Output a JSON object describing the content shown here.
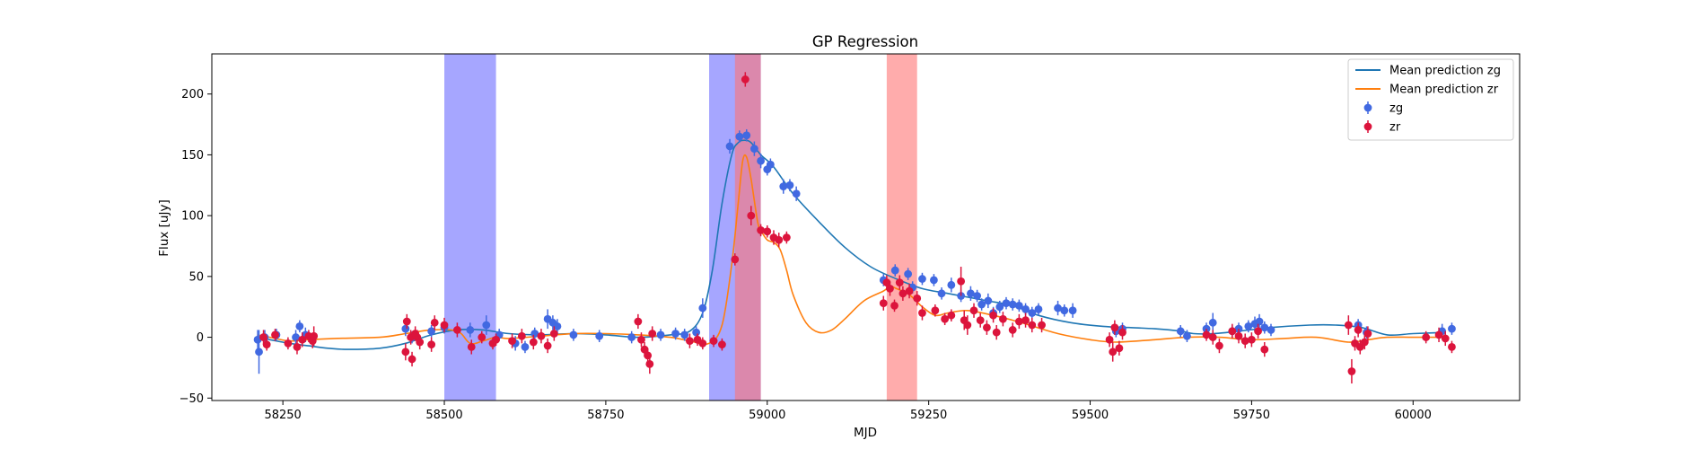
{
  "chart_data": {
    "type": "scatter",
    "title": "GP Regression",
    "xlabel": "MJD",
    "ylabel": "Flux [uJy]",
    "xlim": [
      58140,
      60165
    ],
    "ylim": [
      -52,
      233
    ],
    "x_ticks": [
      58250,
      58500,
      58750,
      59000,
      59250,
      59500,
      59750,
      60000
    ],
    "y_ticks": [
      -50,
      0,
      50,
      100,
      150,
      200
    ],
    "grid": false,
    "legend_position": "top-right",
    "colors": {
      "zg_line": "#1f77b4",
      "zr_line": "#ff7f0e",
      "zg_points": "#4169e1",
      "zr_points": "#dc143c",
      "band_blue": "#6a6aff",
      "band_red": "#ff7575"
    },
    "legend": [
      {
        "label": "Mean prediction zg",
        "kind": "line",
        "color": "#1f77b4"
      },
      {
        "label": "Mean prediction zr",
        "kind": "line",
        "color": "#ff7f0e"
      },
      {
        "label": "zg",
        "kind": "point",
        "color": "#4169e1"
      },
      {
        "label": "zr",
        "kind": "point",
        "color": "#dc143c"
      }
    ],
    "shaded_regions": [
      {
        "x0": 58500,
        "x1": 58580,
        "color": "blue"
      },
      {
        "x0": 58910,
        "x1": 58990,
        "color": "blue"
      },
      {
        "x0": 58950,
        "x1": 58990,
        "color": "red"
      },
      {
        "x0": 59185,
        "x1": 59232,
        "color": "red"
      }
    ],
    "series": [
      {
        "name": "Mean prediction zg",
        "kind": "line",
        "x": [
          58210,
          58230,
          58260,
          58290,
          58320,
          58350,
          58400,
          58440,
          58480,
          58520,
          58560,
          58600,
          58650,
          58700,
          58750,
          58800,
          58850,
          58880,
          58900,
          58915,
          58930,
          58945,
          58955,
          58965,
          58975,
          58990,
          59010,
          59040,
          59080,
          59120,
          59160,
          59200,
          59240,
          59280,
          59300,
          59340,
          59380,
          59420,
          59470,
          59520,
          59560,
          59600,
          59640,
          59660,
          59690,
          59730,
          59780,
          59840,
          59880,
          59920,
          59960,
          60000,
          60050
        ],
        "y": [
          0,
          -2,
          -5,
          -7,
          -9,
          -10,
          -9,
          -5,
          2,
          6,
          6,
          3,
          2,
          3,
          2,
          0,
          2,
          5,
          20,
          55,
          110,
          150,
          160,
          162,
          160,
          150,
          140,
          118,
          95,
          74,
          58,
          48,
          40,
          36,
          34,
          30,
          26,
          18,
          12,
          9,
          8,
          7,
          5,
          3,
          3,
          5,
          8,
          10,
          10,
          8,
          2,
          3,
          4
        ]
      },
      {
        "name": "Mean prediction zr",
        "kind": "line",
        "x": [
          58210,
          58230,
          58260,
          58290,
          58330,
          58400,
          58440,
          58480,
          58520,
          58540,
          58560,
          58580,
          58600,
          58650,
          58700,
          58750,
          58800,
          58850,
          58880,
          58910,
          58930,
          58945,
          58955,
          58962,
          58968,
          58975,
          58985,
          58990,
          59000,
          59010,
          59020,
          59030,
          59040,
          59060,
          59080,
          59100,
          59120,
          59150,
          59180,
          59190,
          59200,
          59220,
          59240,
          59260,
          59280,
          59310,
          59350,
          59380,
          59400,
          59450,
          59500,
          59540,
          59600,
          59650,
          59700,
          59750,
          59800,
          59850,
          59900,
          59930,
          59960,
          60000,
          60050
        ],
        "y": [
          2,
          0,
          -3,
          -2,
          -1,
          0,
          3,
          6,
          5,
          -5,
          -3,
          0,
          -1,
          1,
          3,
          3,
          2,
          0,
          -3,
          -5,
          10,
          60,
          110,
          145,
          148,
          130,
          95,
          88,
          80,
          78,
          72,
          55,
          35,
          12,
          4,
          6,
          15,
          30,
          38,
          42,
          40,
          35,
          25,
          18,
          20,
          22,
          18,
          14,
          11,
          3,
          -2,
          -4,
          -2,
          0,
          0,
          -2,
          -1,
          0,
          -4,
          -2,
          0,
          0,
          0
        ]
      },
      {
        "name": "zg",
        "kind": "points",
        "points": [
          [
            58211,
            -2,
            8
          ],
          [
            58213,
            -12,
            18
          ],
          [
            58222,
            0,
            6
          ],
          [
            58240,
            2,
            5
          ],
          [
            58270,
            0,
            6
          ],
          [
            58276,
            9,
            5
          ],
          [
            58285,
            2,
            6
          ],
          [
            58440,
            7,
            6
          ],
          [
            58450,
            0,
            5
          ],
          [
            58480,
            5,
            5
          ],
          [
            58500,
            8,
            5
          ],
          [
            58540,
            6,
            6
          ],
          [
            58565,
            10,
            8
          ],
          [
            58585,
            2,
            5
          ],
          [
            58610,
            -5,
            6
          ],
          [
            58625,
            -8,
            5
          ],
          [
            58640,
            3,
            5
          ],
          [
            58660,
            15,
            8
          ],
          [
            58668,
            12,
            6
          ],
          [
            58675,
            9,
            6
          ],
          [
            58700,
            2,
            5
          ],
          [
            58740,
            1,
            5
          ],
          [
            58790,
            0,
            5
          ],
          [
            58835,
            2,
            5
          ],
          [
            58858,
            3,
            5
          ],
          [
            58872,
            2,
            5
          ],
          [
            58890,
            4,
            5
          ],
          [
            58900,
            24,
            8
          ],
          [
            58942,
            157,
            6
          ],
          [
            58957,
            165,
            5
          ],
          [
            58968,
            166,
            5
          ],
          [
            58980,
            155,
            6
          ],
          [
            58990,
            145,
            6
          ],
          [
            59000,
            138,
            5
          ],
          [
            59005,
            142,
            5
          ],
          [
            59025,
            124,
            6
          ],
          [
            59035,
            125,
            5
          ],
          [
            59045,
            118,
            6
          ],
          [
            59180,
            47,
            5
          ],
          [
            59198,
            55,
            5
          ],
          [
            59218,
            52,
            5
          ],
          [
            59225,
            41,
            5
          ],
          [
            59240,
            48,
            5
          ],
          [
            59258,
            47,
            5
          ],
          [
            59270,
            36,
            5
          ],
          [
            59285,
            43,
            6
          ],
          [
            59300,
            34,
            5
          ],
          [
            59315,
            36,
            6
          ],
          [
            59325,
            34,
            5
          ],
          [
            59332,
            27,
            5
          ],
          [
            59342,
            30,
            6
          ],
          [
            59350,
            20,
            5
          ],
          [
            59360,
            25,
            5
          ],
          [
            59370,
            28,
            5
          ],
          [
            59380,
            27,
            5
          ],
          [
            59390,
            26,
            5
          ],
          [
            59400,
            23,
            5
          ],
          [
            59410,
            20,
            5
          ],
          [
            59420,
            23,
            5
          ],
          [
            59450,
            24,
            6
          ],
          [
            59460,
            22,
            5
          ],
          [
            59473,
            22,
            6
          ],
          [
            59540,
            5,
            5
          ],
          [
            59550,
            7,
            5
          ],
          [
            59640,
            5,
            5
          ],
          [
            59650,
            1,
            5
          ],
          [
            59680,
            7,
            5
          ],
          [
            59690,
            12,
            8
          ],
          [
            59720,
            5,
            5
          ],
          [
            59730,
            7,
            5
          ],
          [
            59745,
            9,
            5
          ],
          [
            59755,
            11,
            6
          ],
          [
            59762,
            13,
            6
          ],
          [
            59770,
            8,
            5
          ],
          [
            59780,
            6,
            5
          ],
          [
            59915,
            10,
            5
          ],
          [
            59928,
            4,
            5
          ],
          [
            60045,
            5,
            6
          ],
          [
            60060,
            7,
            5
          ]
        ]
      },
      {
        "name": "zr",
        "kind": "points",
        "points": [
          [
            58220,
            0,
            6
          ],
          [
            58225,
            -6,
            5
          ],
          [
            58238,
            2,
            5
          ],
          [
            58258,
            -5,
            5
          ],
          [
            58272,
            -8,
            6
          ],
          [
            58280,
            -2,
            6
          ],
          [
            58290,
            1,
            5
          ],
          [
            58296,
            -3,
            6
          ],
          [
            58298,
            1,
            8
          ],
          [
            58440,
            -12,
            7
          ],
          [
            58442,
            13,
            6
          ],
          [
            58448,
            0,
            6
          ],
          [
            58450,
            -18,
            6
          ],
          [
            58455,
            3,
            6
          ],
          [
            58458,
            0,
            6
          ],
          [
            58462,
            -4,
            6
          ],
          [
            58480,
            -6,
            6
          ],
          [
            58485,
            12,
            6
          ],
          [
            58500,
            10,
            6
          ],
          [
            58520,
            6,
            6
          ],
          [
            58542,
            -8,
            6
          ],
          [
            58558,
            0,
            5
          ],
          [
            58575,
            -5,
            5
          ],
          [
            58580,
            -2,
            5
          ],
          [
            58605,
            -3,
            6
          ],
          [
            58620,
            1,
            6
          ],
          [
            58638,
            -4,
            6
          ],
          [
            58650,
            1,
            6
          ],
          [
            58660,
            -7,
            6
          ],
          [
            58670,
            3,
            6
          ],
          [
            58800,
            13,
            6
          ],
          [
            58805,
            -2,
            6
          ],
          [
            58810,
            -10,
            6
          ],
          [
            58815,
            -15,
            6
          ],
          [
            58818,
            -22,
            8
          ],
          [
            58822,
            3,
            6
          ],
          [
            58880,
            -3,
            6
          ],
          [
            58892,
            -2,
            5
          ],
          [
            58900,
            -5,
            5
          ],
          [
            58917,
            -3,
            5
          ],
          [
            58930,
            -6,
            5
          ],
          [
            58950,
            64,
            5
          ],
          [
            58966,
            212,
            6
          ],
          [
            58975,
            100,
            8
          ],
          [
            58990,
            88,
            5
          ],
          [
            59000,
            87,
            5
          ],
          [
            59010,
            82,
            6
          ],
          [
            59018,
            80,
            6
          ],
          [
            59030,
            82,
            5
          ],
          [
            59180,
            28,
            6
          ],
          [
            59185,
            45,
            6
          ],
          [
            59190,
            40,
            6
          ],
          [
            59197,
            26,
            5
          ],
          [
            59205,
            45,
            6
          ],
          [
            59210,
            36,
            6
          ],
          [
            59220,
            38,
            6
          ],
          [
            59232,
            32,
            6
          ],
          [
            59240,
            20,
            6
          ],
          [
            59260,
            22,
            5
          ],
          [
            59275,
            15,
            5
          ],
          [
            59285,
            18,
            5
          ],
          [
            59300,
            46,
            12
          ],
          [
            59305,
            14,
            8
          ],
          [
            59310,
            10,
            8
          ],
          [
            59320,
            22,
            6
          ],
          [
            59330,
            14,
            6
          ],
          [
            59340,
            8,
            6
          ],
          [
            59350,
            18,
            6
          ],
          [
            59355,
            4,
            6
          ],
          [
            59365,
            15,
            6
          ],
          [
            59380,
            6,
            6
          ],
          [
            59390,
            13,
            6
          ],
          [
            59400,
            14,
            6
          ],
          [
            59410,
            10,
            6
          ],
          [
            59425,
            10,
            6
          ],
          [
            59530,
            -2,
            6
          ],
          [
            59535,
            -12,
            8
          ],
          [
            59538,
            8,
            6
          ],
          [
            59545,
            -9,
            6
          ],
          [
            59550,
            4,
            6
          ],
          [
            59680,
            2,
            5
          ],
          [
            59690,
            0,
            6
          ],
          [
            59700,
            -7,
            6
          ],
          [
            59720,
            5,
            6
          ],
          [
            59730,
            1,
            6
          ],
          [
            59740,
            -3,
            6
          ],
          [
            59750,
            -2,
            6
          ],
          [
            59760,
            5,
            6
          ],
          [
            59770,
            -10,
            6
          ],
          [
            59900,
            10,
            8
          ],
          [
            59905,
            -28,
            10
          ],
          [
            59910,
            -5,
            6
          ],
          [
            59915,
            6,
            6
          ],
          [
            59918,
            -8,
            6
          ],
          [
            59925,
            -4,
            6
          ],
          [
            59930,
            3,
            6
          ],
          [
            60020,
            0,
            5
          ],
          [
            60040,
            2,
            6
          ],
          [
            60050,
            -1,
            6
          ],
          [
            60060,
            -8,
            5
          ]
        ]
      }
    ]
  }
}
